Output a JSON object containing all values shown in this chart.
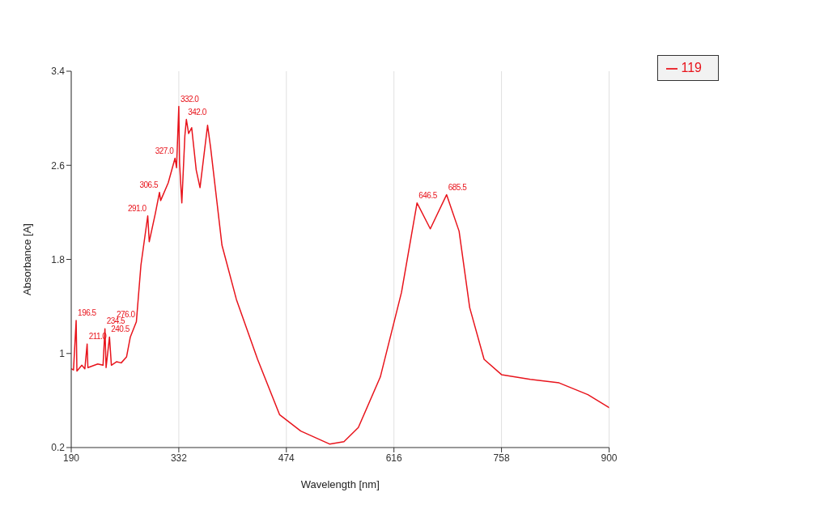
{
  "chart_data": {
    "type": "line",
    "xlabel": "Wavelength [nm]",
    "ylabel": "Absorbance [A]",
    "x": [
      190,
      193,
      196.5,
      197.5,
      204,
      208,
      211,
      212,
      225,
      232,
      234.5,
      236,
      240.5,
      243,
      250,
      256,
      263,
      268,
      276,
      282,
      291,
      293,
      301,
      306.5,
      308,
      318,
      327,
      329,
      332,
      333,
      336,
      340,
      342,
      345,
      349,
      355,
      360,
      370,
      374,
      389,
      408,
      436,
      465,
      493,
      531,
      550,
      569,
      598,
      626,
      646.5,
      664,
      685.5,
      702,
      716,
      735,
      758,
      796,
      834,
      872,
      900
    ],
    "series": [
      {
        "name": "119",
        "color": "#e8141c",
        "values": [
          0.87,
          0.86,
          1.28,
          0.85,
          0.9,
          0.87,
          1.08,
          0.88,
          0.91,
          0.9,
          1.21,
          0.88,
          1.14,
          0.9,
          0.93,
          0.92,
          0.97,
          1.14,
          1.27,
          1.75,
          2.17,
          1.95,
          2.19,
          2.37,
          2.3,
          2.45,
          2.66,
          2.58,
          3.1,
          2.62,
          2.28,
          2.85,
          2.99,
          2.87,
          2.92,
          2.56,
          2.41,
          2.94,
          2.75,
          1.92,
          1.46,
          0.95,
          0.48,
          0.34,
          0.23,
          0.25,
          0.37,
          0.8,
          1.52,
          2.28,
          2.06,
          2.35,
          2.04,
          1.39,
          0.95,
          0.82,
          0.78,
          0.75,
          0.65,
          0.54
        ]
      }
    ],
    "xlim": [
      190,
      900
    ],
    "xticks": [
      190,
      332,
      474,
      616,
      758,
      900
    ],
    "ylim": [
      0.2,
      3.4
    ],
    "yticks": [
      0.2,
      1.0,
      1.8,
      2.6,
      3.4
    ],
    "grid": true,
    "legend": "top right",
    "marker": "none",
    "line_style": "solid",
    "annotations": [
      {
        "text": "196.5",
        "x": 196.5,
        "y": 1.28
      },
      {
        "text": "211.0",
        "x": 211,
        "y": 1.08
      },
      {
        "text": "234.5",
        "x": 234.5,
        "y": 1.21
      },
      {
        "text": "240.5",
        "x": 240.5,
        "y": 1.14
      },
      {
        "text": "276.0",
        "x": 276,
        "y": 1.27
      },
      {
        "text": "291.0",
        "x": 291,
        "y": 2.17
      },
      {
        "text": "306.5",
        "x": 306.5,
        "y": 2.37
      },
      {
        "text": "327.0",
        "x": 327,
        "y": 2.66
      },
      {
        "text": "332.0",
        "x": 332,
        "y": 3.1
      },
      {
        "text": "342.0",
        "x": 342,
        "y": 2.99
      },
      {
        "text": "646.5",
        "x": 646.5,
        "y": 2.28
      },
      {
        "text": "685.5",
        "x": 685.5,
        "y": 2.35
      }
    ]
  }
}
